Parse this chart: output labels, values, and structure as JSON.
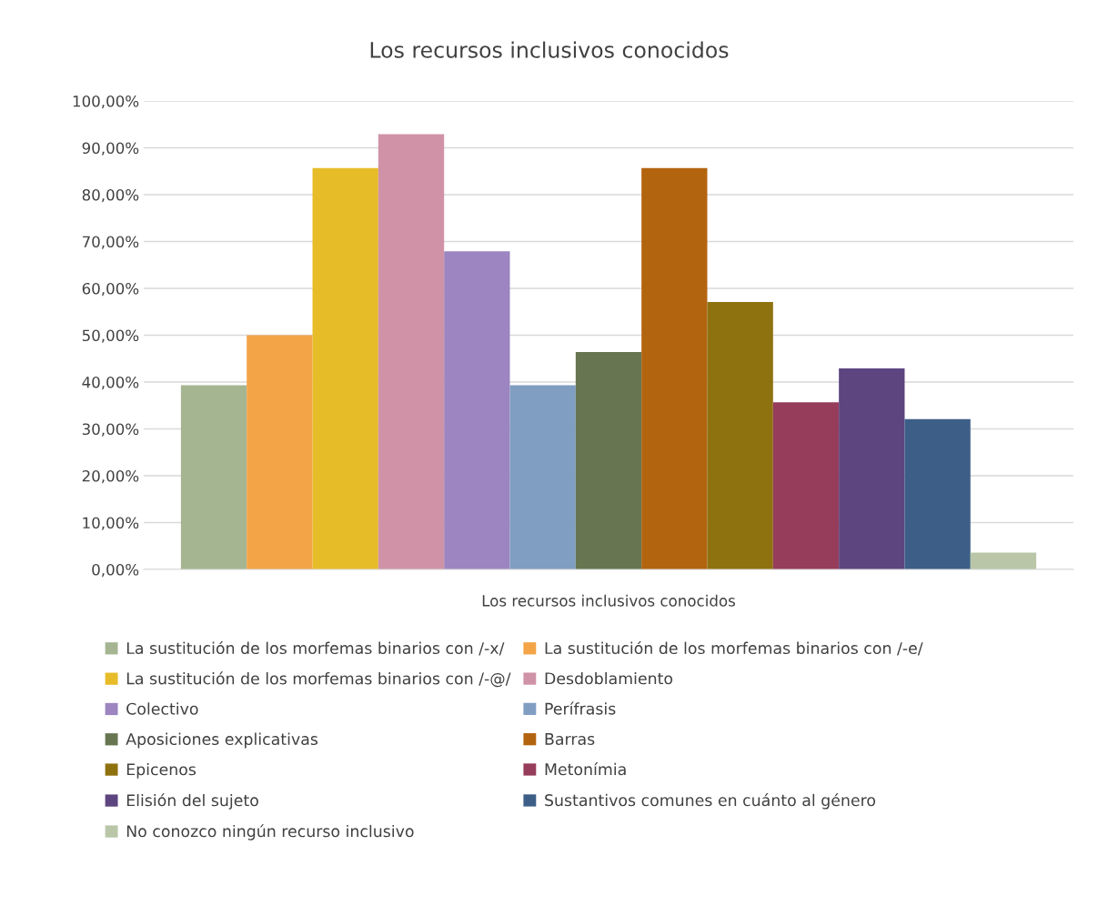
{
  "chart_data": {
    "type": "bar",
    "title": "Los recursos inclusivos conocidos",
    "categories": [
      "Los recursos inclusivos conocidos"
    ],
    "series": [
      {
        "name": "La sustitución de los morfemas binarios con /-x/",
        "color": "#a5b592",
        "values": [
          39.3
        ]
      },
      {
        "name": "La sustitución de los morfemas binarios con /-e/",
        "color": "#f3a447",
        "values": [
          50.0
        ]
      },
      {
        "name": "La sustitución de los morfemas binarios con /-@/",
        "color": "#e7bc29",
        "values": [
          85.7
        ]
      },
      {
        "name": "Desdoblamiento",
        "color": "#d092a7",
        "values": [
          92.9
        ]
      },
      {
        "name": "Colectivo",
        "color": "#9c85c0",
        "values": [
          67.9
        ]
      },
      {
        "name": "Perífrasis",
        "color": "#809ec2",
        "values": [
          39.3
        ]
      },
      {
        "name": "Aposiciones explicativas",
        "color": "#677650",
        "values": [
          46.4
        ]
      },
      {
        "name": "Barras",
        "color": "#b3640f",
        "values": [
          85.7
        ]
      },
      {
        "name": "Epicenos",
        "color": "#8f7210",
        "values": [
          57.1
        ]
      },
      {
        "name": "Metonímia",
        "color": "#963d5b",
        "values": [
          35.7
        ]
      },
      {
        "name": "Elisión del sujeto",
        "color": "#5d4580",
        "values": [
          42.9
        ]
      },
      {
        "name": "Sustantivos comunes en cuánto al género",
        "color": "#3d5f87",
        "values": [
          32.1
        ]
      },
      {
        "name": "No conozco ningún recurso inclusivo",
        "color": "#b9c7a8",
        "values": [
          3.6
        ]
      }
    ],
    "ylim": [
      0,
      100
    ],
    "yticks": [
      {
        "value": 0,
        "label": "0,00%"
      },
      {
        "value": 10,
        "label": "10,00%"
      },
      {
        "value": 20,
        "label": "20,00%"
      },
      {
        "value": 30,
        "label": "30,00%"
      },
      {
        "value": 40,
        "label": "40,00%"
      },
      {
        "value": 50,
        "label": "50,00%"
      },
      {
        "value": 60,
        "label": "60,00%"
      },
      {
        "value": 70,
        "label": "70,00%"
      },
      {
        "value": 80,
        "label": "80,00%"
      },
      {
        "value": 90,
        "label": "90,00%"
      },
      {
        "value": 100,
        "label": "100,00%"
      }
    ],
    "grid": "y",
    "legend": "bottom"
  }
}
